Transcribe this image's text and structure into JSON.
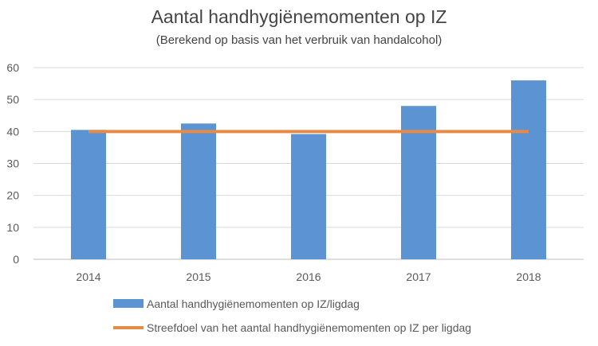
{
  "chart_data": {
    "type": "bar",
    "title": "Aantal handhygiënemomenten op IZ",
    "subtitle": "(Berekend op basis van het verbruik van handalcohol)",
    "categories": [
      "2014",
      "2015",
      "2016",
      "2017",
      "2018"
    ],
    "series": [
      {
        "name": "Aantal handhygiënemomenten op IZ/ligdag",
        "type": "bar",
        "color": "#5b93d3",
        "values": [
          40.5,
          42.5,
          39.2,
          48,
          56
        ]
      },
      {
        "name": "Streefdoel van het aantal handhygiënemomenten op IZ per ligdag",
        "type": "line",
        "color": "#e98a44",
        "values": [
          40,
          40,
          40,
          40,
          40
        ]
      }
    ],
    "ylim": [
      0,
      60
    ],
    "yticks": [
      "0",
      "10",
      "20",
      "30",
      "40",
      "50",
      "60"
    ],
    "grid": true,
    "legend": "bottom"
  }
}
